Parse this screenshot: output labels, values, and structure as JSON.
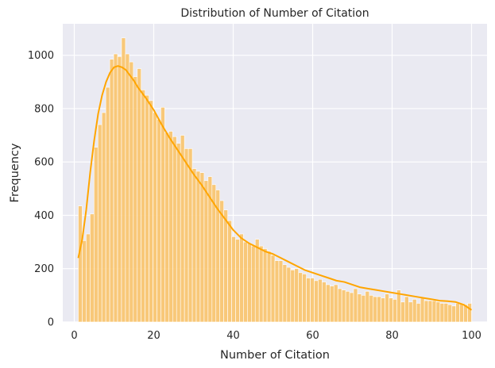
{
  "chart_data": {
    "type": "histogram",
    "title": "Distribution of Number of Citation",
    "xlabel": "Number of Citation",
    "ylabel": "Frequency",
    "xlim": [
      -2.9,
      103.9
    ],
    "ylim": [
      0,
      1118
    ],
    "x_ticks": [
      0,
      20,
      40,
      60,
      80,
      100
    ],
    "y_ticks": [
      0,
      200,
      400,
      600,
      800,
      1000
    ],
    "grid": true,
    "background": "#eaeaf2",
    "bar_color": "#f9c46b",
    "kde_color": "#ffa500",
    "bin_range": [
      1,
      100
    ],
    "series": [
      {
        "kind": "bars",
        "values": [
          435,
          305,
          330,
          405,
          655,
          740,
          785,
          880,
          985,
          1005,
          995,
          1065,
          1005,
          975,
          920,
          950,
          870,
          850,
          830,
          785,
          760,
          805,
          710,
          715,
          695,
          670,
          700,
          650,
          650,
          575,
          565,
          560,
          530,
          545,
          515,
          495,
          455,
          420,
          380,
          320,
          310,
          330,
          300,
          295,
          285,
          310,
          285,
          275,
          265,
          250,
          230,
          230,
          215,
          205,
          195,
          200,
          185,
          180,
          165,
          165,
          155,
          160,
          150,
          140,
          135,
          140,
          125,
          120,
          115,
          110,
          125,
          105,
          100,
          115,
          100,
          95,
          95,
          90,
          105,
          90,
          85,
          120,
          75,
          95,
          75,
          85,
          70,
          90,
          80,
          80,
          80,
          75,
          70,
          70,
          65,
          60,
          70,
          70,
          65,
          70
        ]
      },
      {
        "kind": "kde",
        "x": [
          1,
          2,
          3,
          4,
          5,
          6,
          7,
          8,
          9,
          10,
          11,
          12,
          13,
          14,
          15,
          16,
          18,
          20,
          22,
          24,
          26,
          28,
          30,
          32,
          34,
          36,
          38,
          40,
          42,
          44,
          46,
          48,
          50,
          52,
          54,
          56,
          58,
          60,
          62,
          64,
          66,
          68,
          70,
          72,
          74,
          76,
          78,
          80,
          82,
          84,
          86,
          88,
          90,
          92,
          94,
          96,
          98,
          100
        ],
        "y": [
          240,
          310,
          420,
          560,
          680,
          780,
          850,
          900,
          935,
          955,
          960,
          955,
          945,
          925,
          905,
          880,
          840,
          795,
          740,
          690,
          645,
          600,
          555,
          515,
          470,
          425,
          385,
          345,
          315,
          295,
          280,
          265,
          255,
          240,
          225,
          210,
          195,
          185,
          175,
          165,
          155,
          150,
          140,
          130,
          125,
          120,
          115,
          110,
          105,
          100,
          95,
          90,
          85,
          80,
          78,
          75,
          65,
          45
        ]
      }
    ]
  }
}
